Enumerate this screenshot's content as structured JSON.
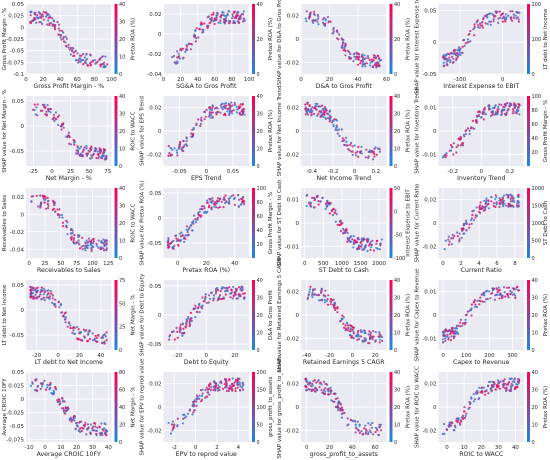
{
  "colors": {
    "low": "#1e88e5",
    "high": "#ff0052",
    "point_alpha": 0.85,
    "panel_bg": "#eaeaf2",
    "grid": "#ffffff",
    "text": "#262626"
  },
  "chart_data": [
    {
      "type": "scatter",
      "title": "",
      "xlabel": "Gross Profit Margin - %",
      "ylabel": "Gross Profit Margin - %",
      "colorbar_label": "Pretax ROA (%)",
      "xticks": [
        0,
        20,
        40,
        60,
        80,
        100
      ],
      "yticks": [
        -0.1,
        -0.075,
        -0.05,
        -0.025,
        0.0,
        0.025,
        0.05
      ],
      "xlim": [
        0,
        100
      ],
      "ylim": [
        -0.1,
        0.05
      ],
      "cticks": [
        0,
        10,
        20,
        30,
        40
      ],
      "clim": [
        0,
        40
      ],
      "seed": 1,
      "grid": true
    },
    {
      "type": "scatter",
      "title": "",
      "xlabel": "SG&A to Gros Profit",
      "ylabel": "",
      "colorbar_label": "Pretax ROA (%)",
      "xticks": [
        0,
        20,
        40,
        60,
        80,
        100
      ],
      "yticks": [
        -0.04,
        -0.02,
        0.0,
        0.02
      ],
      "xlim": [
        0,
        100
      ],
      "ylim": [
        -0.04,
        0.03
      ],
      "cticks": [
        0,
        20,
        40
      ],
      "clim": [
        0,
        40
      ],
      "seed": 2,
      "grid": true
    },
    {
      "type": "scatter",
      "title": "",
      "xlabel": "D&A to Gros Profit",
      "ylabel": "SHAP value for D&A to Gros Profit",
      "colorbar_label": "Pretax ROA (%)",
      "xticks": [
        0,
        20,
        40,
        60
      ],
      "yticks": [
        -0.02,
        0.0,
        0.02
      ],
      "xlim": [
        0,
        60
      ],
      "ylim": [
        -0.03,
        0.03
      ],
      "cticks": [
        0,
        20,
        40
      ],
      "clim": [
        0,
        40
      ],
      "seed": 3,
      "grid": true
    },
    {
      "type": "scatter",
      "title": "",
      "xlabel": "Interest Expense to EBIT",
      "ylabel": "SHAP value for Interest Expense to EBIT",
      "colorbar_label": "LT debt to Net Income",
      "xticks": [
        -100,
        0
      ],
      "yticks": [
        -0.05,
        0.0,
        0.05
      ],
      "xlim": [
        -150,
        50
      ],
      "ylim": [
        -0.05,
        0.06
      ],
      "cticks": [
        0,
        100,
        200
      ],
      "clim": [
        0,
        200
      ],
      "seed": 4,
      "grid": true
    },
    {
      "type": "scatter",
      "title": "",
      "xlabel": "Net Margin - %",
      "ylabel": "SHAP value for Net Margin - %",
      "colorbar_label": "ROIC to WACC",
      "xticks": [
        -25,
        0,
        25,
        50,
        75
      ],
      "yticks": [
        -0.05,
        0.0,
        0.05
      ],
      "xlim": [
        -35,
        80
      ],
      "ylim": [
        -0.08,
        0.06
      ],
      "cticks": [
        0,
        10,
        20,
        30,
        40
      ],
      "clim": [
        0,
        40
      ],
      "seed": 5,
      "grid": true
    },
    {
      "type": "scatter",
      "title": "",
      "xlabel": "EPS Trend",
      "ylabel": "SHAP value for EPS Trend",
      "colorbar_label": "Pretax ROA (%)",
      "xticks": [
        -0.05,
        0.0,
        0.05
      ],
      "yticks": [
        -0.02,
        0.0,
        0.02
      ],
      "xlim": [
        -0.08,
        0.08
      ],
      "ylim": [
        -0.03,
        0.03
      ],
      "cticks": [
        0,
        10,
        20,
        30,
        40
      ],
      "clim": [
        0,
        40
      ],
      "seed": 6,
      "grid": true
    },
    {
      "type": "scatter",
      "title": "",
      "xlabel": "Net Income Trend",
      "ylabel": "SHAP value for Net Income Trend",
      "colorbar_label": "Pretax ROA (%)",
      "xticks": [
        -0.4,
        -0.2,
        0.0,
        0.2
      ],
      "yticks": [
        -0.02,
        0.0,
        0.02
      ],
      "xlim": [
        -0.5,
        0.3
      ],
      "ylim": [
        -0.03,
        0.03
      ],
      "cticks": [
        0,
        10,
        20,
        30,
        40
      ],
      "clim": [
        0,
        40
      ],
      "seed": 7,
      "grid": true
    },
    {
      "type": "scatter",
      "title": "",
      "xlabel": "Inventory Trend",
      "ylabel": "SHAP value for Inventory Trend",
      "colorbar_label": "Gross Profit Margin - %",
      "xticks": [
        -0.2,
        0.0,
        0.2
      ],
      "yticks": [
        -0.01,
        0.0,
        0.01
      ],
      "xlim": [
        -0.3,
        0.3
      ],
      "ylim": [
        -0.015,
        0.015
      ],
      "cticks": [
        20,
        40,
        60,
        80,
        100
      ],
      "clim": [
        0,
        100
      ],
      "seed": 8,
      "grid": true
    },
    {
      "type": "scatter",
      "title": "",
      "xlabel": "Receivables to Sales",
      "ylabel": "Receivables to Sales",
      "colorbar_label": "ROIC to WACC",
      "xticks": [
        0,
        25,
        50,
        75,
        100,
        125
      ],
      "yticks": [
        -0.04,
        -0.02,
        0.0,
        0.02
      ],
      "xlim": [
        -5,
        130
      ],
      "ylim": [
        -0.05,
        0.03
      ],
      "cticks": [
        0,
        10,
        20,
        30,
        40
      ],
      "clim": [
        0,
        40
      ],
      "seed": 9,
      "grid": true
    },
    {
      "type": "scatter",
      "title": "",
      "xlabel": "Pretax ROA (%)",
      "ylabel": "SHAP value for Pretax ROA (%)",
      "colorbar_label": "Gross Profit Margin - %",
      "xticks": [
        0,
        20,
        40
      ],
      "yticks": [
        -0.05,
        0.0,
        0.05
      ],
      "xlim": [
        -10,
        50
      ],
      "ylim": [
        -0.08,
        0.06
      ],
      "cticks": [
        20,
        40,
        60,
        80,
        100
      ],
      "clim": [
        0,
        100
      ],
      "seed": 10,
      "grid": true
    },
    {
      "type": "scatter",
      "title": "",
      "xlabel": "ST Debt to Cash",
      "ylabel": "SHAP value for ST Debt to Cash",
      "colorbar_label": "Interest Expense to EBIT",
      "xticks": [
        0,
        500,
        1000,
        1500,
        2000
      ],
      "yticks": [
        -0.01,
        0.0,
        0.01
      ],
      "xlim": [
        -100,
        2200
      ],
      "ylim": [
        -0.015,
        0.015
      ],
      "cticks": [
        -100,
        -50,
        0,
        50
      ],
      "clim": [
        -100,
        50
      ],
      "seed": 11,
      "grid": true
    },
    {
      "type": "scatter",
      "title": "",
      "xlabel": "Current Ratio",
      "ylabel": "SHAP value for Current Ratio",
      "colorbar_label": "ST Debt to Cash",
      "xticks": [
        0,
        2,
        4,
        6,
        8
      ],
      "yticks": [
        -0.02,
        0.0,
        0.02
      ],
      "xlim": [
        -0.5,
        9
      ],
      "ylim": [
        -0.03,
        0.03
      ],
      "cticks": [
        0,
        500,
        1000,
        1500,
        2000
      ],
      "clim": [
        0,
        2000
      ],
      "seed": 12,
      "grid": true
    },
    {
      "type": "scatter",
      "title": "",
      "xlabel": "LT debt to Net Income",
      "ylabel": "LT debt to Net Income",
      "colorbar_label": "Net Margin - %",
      "xticks": [
        -20,
        0,
        20,
        40
      ],
      "yticks": [
        -0.05,
        0.0,
        0.05
      ],
      "xlim": [
        -30,
        50
      ],
      "ylim": [
        -0.08,
        0.06
      ],
      "cticks": [
        0,
        25,
        50,
        75
      ],
      "clim": [
        0,
        75
      ],
      "seed": 13,
      "grid": true
    },
    {
      "type": "scatter",
      "title": "",
      "xlabel": "Debt to Equity",
      "ylabel": "SHAP value for Debt to Equity",
      "colorbar_label": "D&A to Gros Profit",
      "xticks": [
        -20,
        0,
        20
      ],
      "yticks": [
        -0.05,
        0.0,
        0.05
      ],
      "xlim": [
        -30,
        30
      ],
      "ylim": [
        -0.06,
        0.06
      ],
      "cticks": [
        0,
        10,
        20,
        30,
        40
      ],
      "clim": [
        0,
        40
      ],
      "seed": 14,
      "grid": true
    },
    {
      "type": "scatter",
      "title": "",
      "xlabel": "Retained Earnings 5 CAGR",
      "ylabel": "SHAP value for Retained Earnings 5 CAGR",
      "colorbar_label": "Pretax ROA (%)",
      "xticks": [
        -40,
        -20,
        0,
        20
      ],
      "yticks": [
        -0.02,
        0.0,
        0.02
      ],
      "xlim": [
        -45,
        30
      ],
      "ylim": [
        -0.03,
        0.03
      ],
      "cticks": [
        0,
        10,
        20,
        30,
        40
      ],
      "clim": [
        0,
        40
      ],
      "seed": 15,
      "grid": true
    },
    {
      "type": "scatter",
      "title": "",
      "xlabel": "Capex to Revenue",
      "ylabel": "SHAP value for Capex to Revenue",
      "colorbar_label": "Pretax ROA (%)",
      "xticks": [
        0,
        100,
        200,
        300
      ],
      "yticks": [
        -0.01,
        0.0,
        0.01
      ],
      "xlim": [
        -20,
        350
      ],
      "ylim": [
        -0.015,
        0.015
      ],
      "cticks": [
        0,
        10,
        20,
        30,
        40
      ],
      "clim": [
        0,
        40
      ],
      "seed": 16,
      "grid": true
    },
    {
      "type": "scatter",
      "title": "",
      "xlabel": "Average CROIC 10FY",
      "ylabel": "Average CROIC 10FY",
      "colorbar_label": "Net Margin - %",
      "xticks": [
        -10,
        0,
        10,
        20,
        30,
        40
      ],
      "yticks": [
        -0.075,
        -0.05,
        -0.025,
        0.0,
        0.025,
        0.05
      ],
      "xlim": [
        -12,
        42
      ],
      "ylim": [
        -0.08,
        0.05
      ],
      "cticks": [
        0,
        20,
        40,
        60,
        80
      ],
      "clim": [
        0,
        80
      ],
      "seed": 17,
      "grid": true
    },
    {
      "type": "scatter",
      "title": "",
      "xlabel": "EPV to reprod value",
      "ylabel": "SHAP value for EPV to reprod value",
      "colorbar_label": "gross_profit_to_assets",
      "xticks": [
        -2,
        0,
        2,
        4
      ],
      "yticks": [
        -0.02,
        0.0,
        0.02
      ],
      "xlim": [
        -3,
        5
      ],
      "ylim": [
        -0.03,
        0.03
      ],
      "cticks": [
        0,
        50,
        100,
        150,
        200
      ],
      "clim": [
        0,
        200
      ],
      "seed": 18,
      "grid": true
    },
    {
      "type": "scatter",
      "title": "",
      "xlabel": "gross_profit_to_assets",
      "ylabel": "SHAP value for gross_profit_to_assets",
      "colorbar_label": "Pretax ROA (%)",
      "xticks": [
        0,
        20,
        40,
        60
      ],
      "yticks": [
        -0.02,
        0.0,
        0.02
      ],
      "xlim": [
        -5,
        70
      ],
      "ylim": [
        -0.03,
        0.03
      ],
      "cticks": [
        0,
        10,
        20,
        30,
        40
      ],
      "clim": [
        0,
        40
      ],
      "seed": 19,
      "grid": true
    },
    {
      "type": "scatter",
      "title": "",
      "xlabel": "ROIC to WACC",
      "ylabel": "SHAP value for ROIC to WACC",
      "colorbar_label": "Pretax ROA (%)",
      "xticks": [
        0,
        10,
        20,
        30,
        40
      ],
      "yticks": [
        -0.02,
        0.0,
        0.02
      ],
      "xlim": [
        -5,
        45
      ],
      "ylim": [
        -0.03,
        0.03
      ],
      "cticks": [
        0,
        10,
        20,
        30,
        40
      ],
      "clim": [
        0,
        40
      ],
      "seed": 20,
      "grid": true
    }
  ]
}
